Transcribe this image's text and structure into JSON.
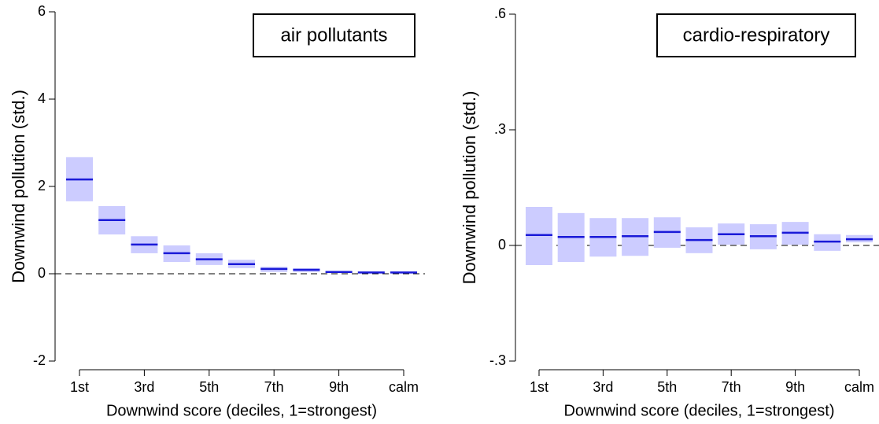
{
  "chart_data": [
    {
      "type": "interval",
      "annotation": "air pollutants",
      "y_label": "Downwind pollution (std.)",
      "x_label": "Downwind score (deciles, 1=strongest)",
      "categories": [
        "1st",
        null,
        "3rd",
        null,
        "5th",
        null,
        "7th",
        null,
        "9th",
        null,
        "calm"
      ],
      "values": [
        2.16,
        1.23,
        0.67,
        0.47,
        0.33,
        0.22,
        0.11,
        0.09,
        0.04,
        0.03,
        0.03
      ],
      "lower": [
        1.66,
        0.9,
        0.47,
        0.27,
        0.2,
        0.13,
        0.04,
        0.04,
        0.02,
        0.01,
        0.02
      ],
      "upper": [
        2.67,
        1.55,
        0.86,
        0.65,
        0.47,
        0.32,
        0.16,
        0.13,
        0.06,
        0.05,
        0.04
      ],
      "color": "#1a1ad8",
      "interval_color": "#ccccff",
      "ylim": [
        -2,
        6
      ],
      "yticks": [
        -2,
        0,
        2,
        4,
        6
      ]
    },
    {
      "type": "interval",
      "annotation": "cardio-respiratory",
      "y_label": "Downwind pollution (std.)",
      "x_label": "Downwind score (deciles, 1=strongest)",
      "categories": [
        "1st",
        null,
        "3rd",
        null,
        "5th",
        null,
        "7th",
        null,
        "9th",
        null,
        "calm"
      ],
      "values": [
        0.027,
        0.022,
        0.022,
        0.024,
        0.035,
        0.014,
        0.029,
        0.024,
        0.033,
        0.01,
        0.016
      ],
      "lower": [
        -0.051,
        -0.043,
        -0.029,
        -0.027,
        -0.006,
        -0.02,
        0.002,
        -0.01,
        0.002,
        -0.014,
        0.008
      ],
      "upper": [
        0.1,
        0.084,
        0.071,
        0.071,
        0.073,
        0.047,
        0.057,
        0.055,
        0.061,
        0.029,
        0.027
      ],
      "color": "#1a1ad8",
      "interval_color": "#ccccff",
      "ylim": [
        -0.3,
        0.6
      ],
      "yticks": [
        {
          "value": -0.3,
          "label": "-.3"
        },
        0,
        {
          "value": 0.3,
          "label": ".3"
        },
        {
          "value": 0.6,
          "label": ".6"
        }
      ]
    }
  ]
}
